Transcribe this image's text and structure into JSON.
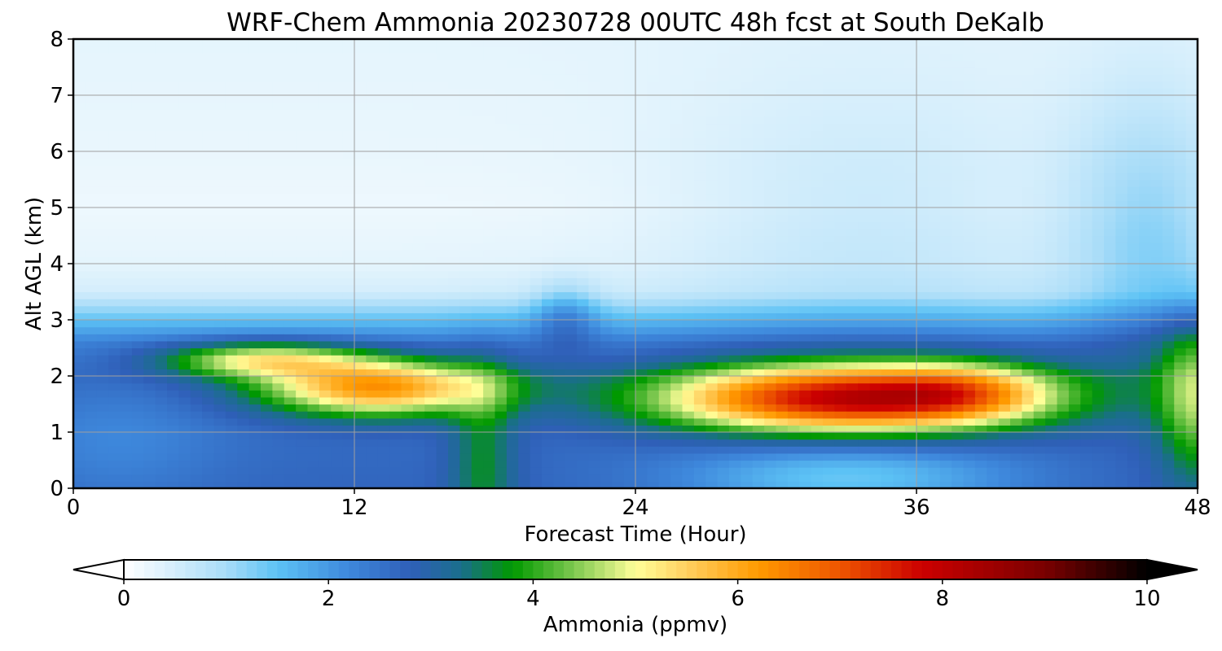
{
  "chart_data": {
    "type": "heatmap",
    "title": "WRF-Chem Ammonia  20230728 00UTC 48h fcst at South DeKalb",
    "xlabel": "Forecast Time (Hour)",
    "ylabel": "Alt AGL (km)",
    "xlim": [
      0,
      48
    ],
    "ylim": [
      0,
      8
    ],
    "x_ticks": [
      0,
      12,
      24,
      36,
      48
    ],
    "y_ticks": [
      0,
      1,
      2,
      3,
      4,
      5,
      6,
      7,
      8
    ],
    "grid": true,
    "colorbar": {
      "label": "Ammonia  (ppmv)",
      "range": [
        0,
        10
      ],
      "ticks": [
        0,
        2,
        4,
        6,
        8,
        10
      ],
      "extend": "both",
      "stops": [
        {
          "value": 0,
          "color": "#ffffff"
        },
        {
          "value": 1,
          "color": "#a8dcf8"
        },
        {
          "value": 1.5,
          "color": "#5cc2f5"
        },
        {
          "value": 2.2,
          "color": "#3e88dc"
        },
        {
          "value": 2.8,
          "color": "#2f5fb8"
        },
        {
          "value": 3.3,
          "color": "#1a6e8c"
        },
        {
          "value": 3.8,
          "color": "#009900"
        },
        {
          "value": 4.4,
          "color": "#7ec850"
        },
        {
          "value": 5.0,
          "color": "#ffff99"
        },
        {
          "value": 5.5,
          "color": "#ffd060"
        },
        {
          "value": 6.2,
          "color": "#ff9a00"
        },
        {
          "value": 7.0,
          "color": "#ee5500"
        },
        {
          "value": 7.8,
          "color": "#cc0000"
        },
        {
          "value": 9.0,
          "color": "#7a0000"
        },
        {
          "value": 10,
          "color": "#000000"
        }
      ]
    },
    "field": {
      "description_units": "ppmv",
      "background": [
        {
          "z": 0.0,
          "v": 2.7
        },
        {
          "z": 1.0,
          "v": 2.6
        },
        {
          "z": 2.0,
          "v": 2.7
        },
        {
          "z": 2.6,
          "v": 2.3
        },
        {
          "z": 3.0,
          "v": 1.5
        },
        {
          "z": 3.5,
          "v": 0.5
        },
        {
          "z": 4.0,
          "v": 0.3
        },
        {
          "z": 5.0,
          "v": 0.2
        },
        {
          "z": 6.0,
          "v": 0.25
        },
        {
          "z": 8.0,
          "v": 0.3
        }
      ],
      "features": [
        {
          "t": 13,
          "z": 1.8,
          "st": 3.5,
          "sz": 0.35,
          "a": 3.6
        },
        {
          "t": 8,
          "z": 2.3,
          "st": 3.0,
          "sz": 0.22,
          "a": 2.4
        },
        {
          "t": 33,
          "z": 1.6,
          "st": 5.5,
          "sz": 0.42,
          "a": 5.2
        },
        {
          "t": 38,
          "z": 1.75,
          "st": 2.5,
          "sz": 0.35,
          "a": 1.5
        },
        {
          "t": 17.5,
          "z": 0.5,
          "st": 1.0,
          "sz": 1.2,
          "a": 1.0
        },
        {
          "t": 48,
          "z": 1.6,
          "st": 1.2,
          "sz": 1.0,
          "a": 1.8
        },
        {
          "t": 33,
          "z": 0.2,
          "st": 5.0,
          "sz": 0.45,
          "a": -1.3
        },
        {
          "t": 2,
          "z": 0.8,
          "st": 3.0,
          "sz": 0.8,
          "a": -0.4
        },
        {
          "t": 34,
          "z": 4.5,
          "st": 6.0,
          "sz": 2.0,
          "a": 0.4
        },
        {
          "t": 46,
          "z": 4.5,
          "st": 2.5,
          "sz": 1.8,
          "a": 0.9
        },
        {
          "t": 21,
          "z": 3.1,
          "st": 1.0,
          "sz": 0.4,
          "a": 0.9
        }
      ]
    }
  }
}
